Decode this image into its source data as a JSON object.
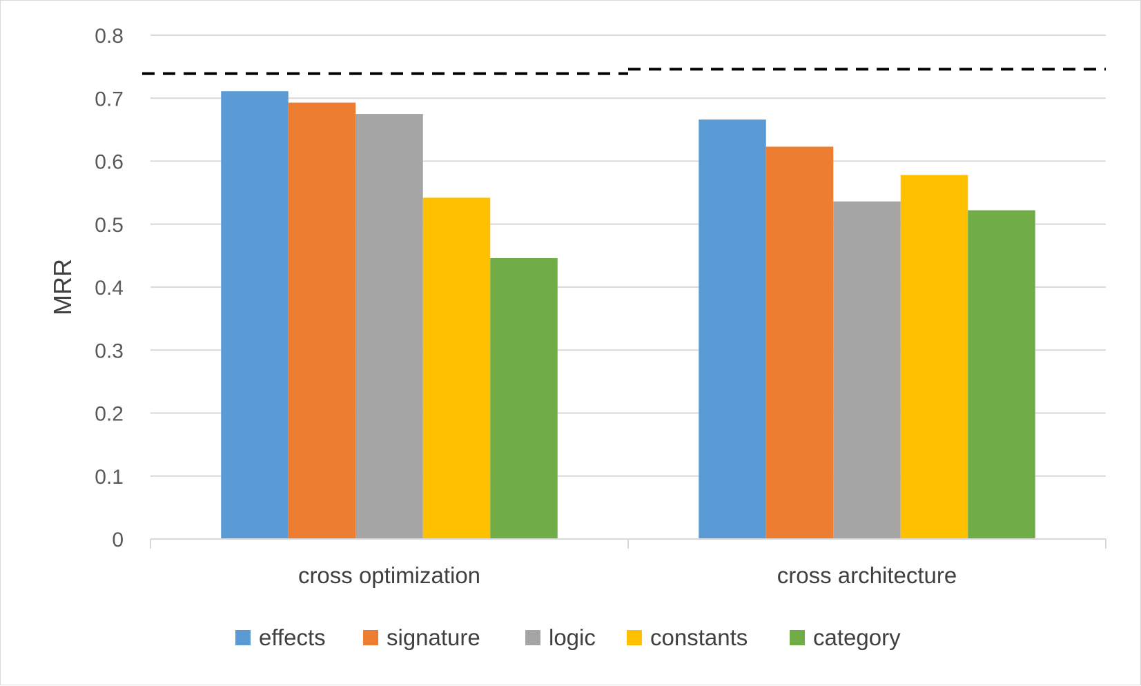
{
  "chart_data": {
    "type": "bar",
    "title": "",
    "xlabel": "",
    "ylabel": "MRR",
    "ylim": [
      0,
      0.8
    ],
    "yticks": [
      "0",
      "0.1",
      "0.2",
      "0.3",
      "0.4",
      "0.5",
      "0.6",
      "0.7",
      "0.8"
    ],
    "grid": true,
    "legend_position": "bottom",
    "categories": [
      "cross optimization",
      "cross architecture"
    ],
    "series": [
      {
        "name": "effects",
        "color": "#5b9bd5",
        "values": [
          0.711,
          0.666
        ]
      },
      {
        "name": "signature",
        "color": "#ed7d31",
        "values": [
          0.693,
          0.623
        ]
      },
      {
        "name": "logic",
        "color": "#a5a5a5",
        "values": [
          0.675,
          0.536
        ]
      },
      {
        "name": "constants",
        "color": "#ffc000",
        "values": [
          0.542,
          0.578
        ]
      },
      {
        "name": "category",
        "color": "#70ad47",
        "values": [
          0.446,
          0.522
        ]
      }
    ],
    "reference_lines": [
      {
        "style": "dashed",
        "color": "#000000",
        "category": "cross optimization",
        "value": 0.739
      },
      {
        "style": "dashed",
        "color": "#000000",
        "category": "cross architecture",
        "value": 0.746
      }
    ]
  }
}
